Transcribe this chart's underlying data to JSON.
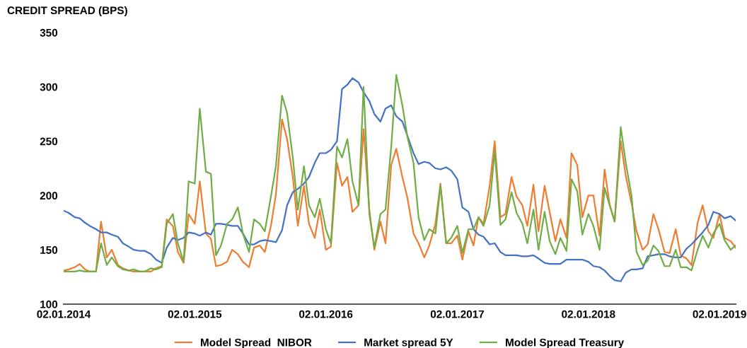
{
  "chart_data": {
    "type": "line",
    "title": "CREDIT SPREAD (BPS)",
    "x": [
      "2014-01-02",
      "2014-01-16",
      "2014-02-02",
      "2014-02-16",
      "2014-03-02",
      "2014-03-16",
      "2014-04-02",
      "2014-04-16",
      "2014-05-02",
      "2014-05-16",
      "2014-06-02",
      "2014-06-16",
      "2014-07-02",
      "2014-07-16",
      "2014-08-02",
      "2014-08-16",
      "2014-09-02",
      "2014-09-16",
      "2014-10-02",
      "2014-10-16",
      "2014-11-02",
      "2014-11-16",
      "2014-12-02",
      "2014-12-16",
      "2015-01-02",
      "2015-01-16",
      "2015-02-02",
      "2015-02-16",
      "2015-03-02",
      "2015-03-16",
      "2015-04-02",
      "2015-04-16",
      "2015-05-02",
      "2015-05-16",
      "2015-06-02",
      "2015-06-16",
      "2015-07-02",
      "2015-07-16",
      "2015-08-02",
      "2015-08-16",
      "2015-09-02",
      "2015-09-16",
      "2015-10-02",
      "2015-10-16",
      "2015-11-02",
      "2015-11-16",
      "2015-12-02",
      "2015-12-16",
      "2016-01-02",
      "2016-01-16",
      "2016-02-02",
      "2016-02-16",
      "2016-03-02",
      "2016-03-16",
      "2016-04-02",
      "2016-04-16",
      "2016-05-02",
      "2016-05-16",
      "2016-06-02",
      "2016-06-16",
      "2016-07-02",
      "2016-07-16",
      "2016-08-02",
      "2016-08-16",
      "2016-09-02",
      "2016-09-16",
      "2016-10-02",
      "2016-10-16",
      "2016-11-02",
      "2016-11-16",
      "2016-12-02",
      "2016-12-16",
      "2017-01-02",
      "2017-01-16",
      "2017-02-02",
      "2017-02-16",
      "2017-03-02",
      "2017-03-16",
      "2017-04-02",
      "2017-04-16",
      "2017-05-02",
      "2017-05-16",
      "2017-06-02",
      "2017-06-16",
      "2017-07-02",
      "2017-07-16",
      "2017-08-02",
      "2017-08-16",
      "2017-09-02",
      "2017-09-16",
      "2017-10-02",
      "2017-10-16",
      "2017-11-02",
      "2017-11-16",
      "2017-12-02",
      "2017-12-16",
      "2018-01-02",
      "2018-01-16",
      "2018-02-02",
      "2018-02-16",
      "2018-03-02",
      "2018-03-16",
      "2018-04-02",
      "2018-04-16",
      "2018-05-02",
      "2018-05-16",
      "2018-06-02",
      "2018-06-16",
      "2018-07-02",
      "2018-07-16",
      "2018-08-02",
      "2018-08-16",
      "2018-09-02",
      "2018-09-16",
      "2018-10-02",
      "2018-10-16",
      "2018-11-02",
      "2018-11-16",
      "2018-12-02",
      "2018-12-16",
      "2019-01-02",
      "2019-01-16",
      "2019-02-02",
      "2019-02-16"
    ],
    "series": [
      {
        "name": "Model Spread  NIBOR",
        "color": "#ed7d31",
        "values": [
          131,
          132,
          134,
          137,
          132,
          130,
          130,
          176,
          143,
          150,
          136,
          133,
          131,
          130,
          130,
          130,
          130,
          133,
          135,
          178,
          172,
          148,
          138,
          183,
          174,
          213,
          165,
          160,
          135,
          136,
          139,
          150,
          146,
          139,
          134,
          152,
          154,
          148,
          172,
          201,
          270,
          252,
          217,
          172,
          209,
          174,
          161,
          187,
          150,
          153,
          230,
          209,
          217,
          185,
          191,
          261,
          187,
          150,
          176,
          156,
          228,
          243,
          217,
          198,
          165,
          156,
          143,
          154,
          174,
          211,
          156,
          156,
          163,
          141,
          167,
          154,
          180,
          174,
          209,
          250,
          180,
          183,
          217,
          199,
          191,
          172,
          210,
          167,
          209,
          185,
          158,
          178,
          161,
          239,
          228,
          180,
          200,
          200,
          163,
          224,
          192,
          176,
          250,
          218,
          193,
          167,
          150,
          155,
          183,
          169,
          148,
          147,
          169,
          145,
          142,
          136,
          175,
          191,
          167,
          161,
          183,
          161,
          158,
          152
        ]
      },
      {
        "name": "Market spread 5Y",
        "color": "#4472c4",
        "values": [
          186,
          184,
          180,
          179,
          175,
          172,
          169,
          166,
          166,
          164,
          162,
          156,
          153,
          150,
          149,
          149,
          146,
          141,
          138,
          152,
          161,
          159,
          161,
          166,
          165,
          163,
          166,
          164,
          174,
          174,
          173,
          172,
          172,
          165,
          155,
          155,
          158,
          159,
          158,
          157,
          168,
          191,
          203,
          206,
          211,
          217,
          230,
          239,
          239,
          242,
          250,
          298,
          302,
          308,
          304,
          295,
          287,
          275,
          268,
          280,
          283,
          273,
          268,
          255,
          239,
          229,
          231,
          230,
          225,
          224,
          226,
          223,
          215,
          189,
          185,
          169,
          164,
          162,
          155,
          156,
          148,
          145,
          145,
          145,
          144,
          144,
          145,
          142,
          138,
          137,
          137,
          137,
          141,
          141,
          141,
          141,
          139,
          135,
          134,
          131,
          126,
          122,
          121,
          129,
          132,
          132,
          133,
          144,
          145,
          146,
          146,
          144,
          143,
          143,
          151,
          155,
          161,
          166,
          173,
          185,
          183,
          179,
          181,
          177
        ]
      },
      {
        "name": "Model Spread Treasury",
        "color": "#70ad47",
        "values": [
          130,
          130,
          130,
          131,
          130,
          130,
          130,
          156,
          136,
          143,
          135,
          132,
          131,
          132,
          130,
          130,
          133,
          132,
          134,
          174,
          183,
          156,
          139,
          213,
          211,
          280,
          222,
          220,
          145,
          154,
          174,
          178,
          189,
          165,
          148,
          178,
          174,
          167,
          199,
          227,
          292,
          276,
          235,
          187,
          227,
          191,
          180,
          197,
          169,
          156,
          245,
          235,
          252,
          213,
          191,
          300,
          183,
          152,
          183,
          187,
          245,
          311,
          283,
          254,
          230,
          180,
          159,
          169,
          165,
          209,
          156,
          161,
          172,
          147,
          169,
          169,
          180,
          172,
          191,
          241,
          173,
          178,
          203,
          184,
          174,
          156,
          187,
          150,
          185,
          158,
          146,
          161,
          149,
          215,
          204,
          164,
          183,
          172,
          150,
          207,
          191,
          176,
          263,
          230,
          200,
          148,
          136,
          140,
          154,
          149,
          135,
          135,
          150,
          134,
          134,
          131,
          150,
          163,
          152,
          165,
          174,
          159,
          150,
          154
        ]
      }
    ],
    "xlim": [
      "2014-01-02",
      "2019-02-16"
    ],
    "xticks": [
      {
        "value": "2014-01-02",
        "label": "02.01.2014"
      },
      {
        "value": "2015-01-02",
        "label": "02.01.2015"
      },
      {
        "value": "2016-01-02",
        "label": "02.01.2016"
      },
      {
        "value": "2017-01-02",
        "label": "02.01.2017"
      },
      {
        "value": "2018-01-02",
        "label": "02.01.2018"
      },
      {
        "value": "2019-01-02",
        "label": "02.01.2019"
      }
    ],
    "ylim": [
      100,
      350
    ],
    "yticks": [
      100,
      150,
      200,
      250,
      300,
      350
    ],
    "grid": false,
    "legend": "bottom",
    "marker": "none",
    "line_style": "solid"
  }
}
